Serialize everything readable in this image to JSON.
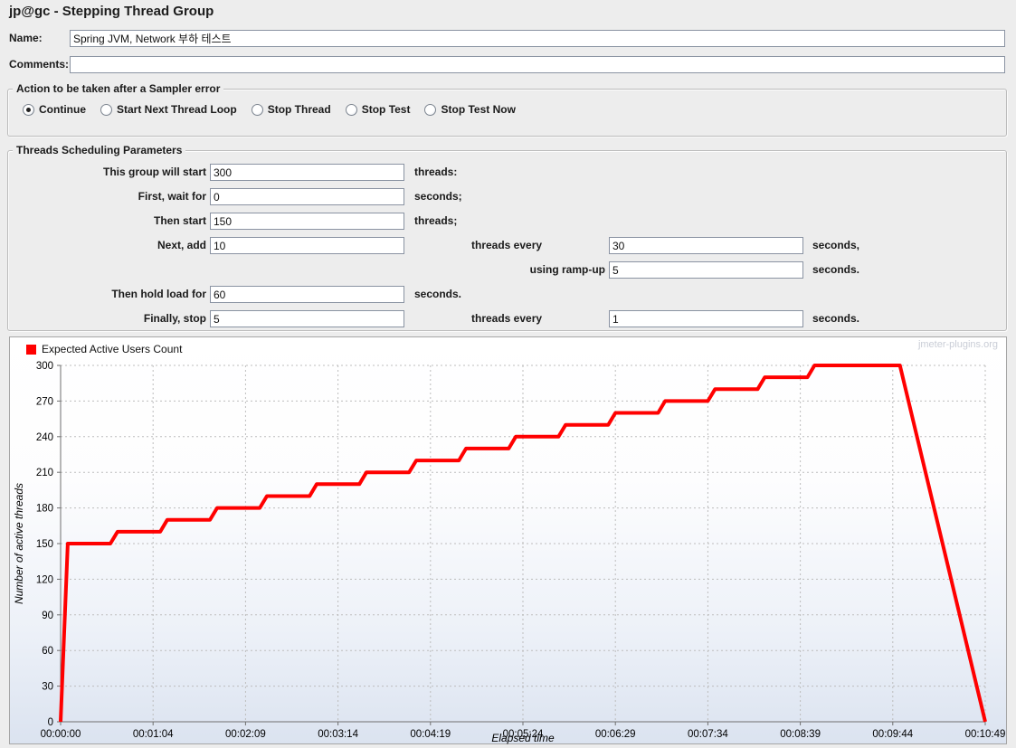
{
  "header": {
    "title": "jp@gc - Stepping Thread Group"
  },
  "fields": {
    "name_label": "Name:",
    "name_value": "Spring JVM, Network 부하 테스트",
    "comments_label": "Comments:",
    "comments_value": ""
  },
  "action_group": {
    "title": "Action to be taken after a Sampler error",
    "options": [
      {
        "label": "Continue",
        "selected": true
      },
      {
        "label": "Start Next Thread Loop",
        "selected": false
      },
      {
        "label": "Stop Thread",
        "selected": false
      },
      {
        "label": "Stop Test",
        "selected": false
      },
      {
        "label": "Stop Test Now",
        "selected": false
      }
    ]
  },
  "scheduling_group": {
    "title": "Threads Scheduling Parameters",
    "rows": [
      {
        "label": "This group will start",
        "value": "300",
        "suffix": "threads:"
      },
      {
        "label": "First, wait for",
        "value": "0",
        "suffix": "seconds;"
      },
      {
        "label": "Then start",
        "value": "150",
        "suffix": "threads;"
      },
      {
        "label": "Next, add",
        "value": "10",
        "mid_label": "threads every",
        "value2": "30",
        "suffix": "seconds,"
      },
      {
        "label": "using ramp-up",
        "value2": "5",
        "suffix": "seconds."
      },
      {
        "label": "Then hold load for",
        "value": "60",
        "suffix": "seconds."
      },
      {
        "label": "Finally, stop",
        "value": "5",
        "mid_label": "threads every",
        "value2": "1",
        "suffix": "seconds."
      }
    ]
  },
  "chart_data": {
    "type": "line",
    "legend": [
      "Expected Active Users Count"
    ],
    "watermark": "jmeter-plugins.org",
    "xlabel": "Elapsed time",
    "ylabel": "Number of active threads",
    "xlim": [
      0,
      650
    ],
    "ylim": [
      0,
      300
    ],
    "grid": "dashed",
    "x_tick_labels": [
      "00:00:00",
      "00:01:04",
      "00:02:09",
      "00:03:14",
      "00:04:19",
      "00:05:24",
      "00:06:29",
      "00:07:34",
      "00:08:39",
      "00:09:44",
      "00:10:49"
    ],
    "y_ticks": [
      0,
      30,
      60,
      90,
      120,
      150,
      180,
      210,
      240,
      270,
      300
    ],
    "series": [
      {
        "name": "Expected Active Users Count",
        "color": "#ff0000",
        "points": [
          [
            0,
            0
          ],
          [
            5,
            150
          ],
          [
            35,
            150
          ],
          [
            40,
            160
          ],
          [
            70,
            160
          ],
          [
            75,
            170
          ],
          [
            105,
            170
          ],
          [
            110,
            180
          ],
          [
            140,
            180
          ],
          [
            145,
            190
          ],
          [
            175,
            190
          ],
          [
            180,
            200
          ],
          [
            210,
            200
          ],
          [
            215,
            210
          ],
          [
            245,
            210
          ],
          [
            250,
            220
          ],
          [
            280,
            220
          ],
          [
            285,
            230
          ],
          [
            315,
            230
          ],
          [
            320,
            240
          ],
          [
            350,
            240
          ],
          [
            355,
            250
          ],
          [
            385,
            250
          ],
          [
            390,
            260
          ],
          [
            420,
            260
          ],
          [
            425,
            270
          ],
          [
            455,
            270
          ],
          [
            460,
            280
          ],
          [
            490,
            280
          ],
          [
            495,
            290
          ],
          [
            525,
            290
          ],
          [
            530,
            300
          ],
          [
            590,
            300
          ],
          [
            650,
            0
          ]
        ]
      }
    ]
  }
}
